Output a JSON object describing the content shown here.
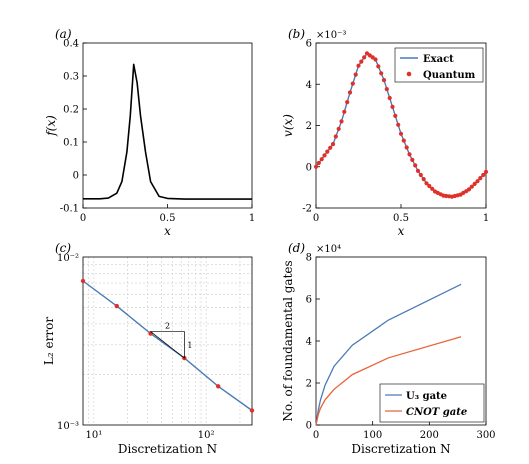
{
  "colors": {
    "exact": "#4a7bb7",
    "quantum": "#e0302a",
    "u3": "#4a7bb7",
    "cnot": "#e8643a",
    "grid": "#cccccc"
  },
  "chart_data": [
    {
      "id": "a",
      "type": "line",
      "panel_label": "(a)",
      "xlabel": "x",
      "ylabel": "f(x)",
      "xlim": [
        0,
        1
      ],
      "ylim": [
        -0.1,
        0.4
      ],
      "xticks": [
        "0",
        "0.5",
        "1"
      ],
      "yticks": [
        "-0.1",
        "0",
        "0.1",
        "0.2",
        "0.3",
        "0.4"
      ],
      "series": [
        {
          "x": [
            0,
            0.1,
            0.15,
            0.2,
            0.23,
            0.26,
            0.28,
            0.3,
            0.32,
            0.34,
            0.37,
            0.4,
            0.45,
            0.5,
            0.6,
            0.8,
            1.0
          ],
          "y": [
            -0.072,
            -0.072,
            -0.07,
            -0.055,
            -0.02,
            0.07,
            0.18,
            0.335,
            0.28,
            0.18,
            0.07,
            -0.02,
            -0.065,
            -0.071,
            -0.073,
            -0.073,
            -0.073
          ]
        }
      ]
    },
    {
      "id": "b",
      "type": "line",
      "panel_label": "(b)",
      "xlabel": "x",
      "ylabel": "v(x)",
      "y_multiplier": "×10⁻³",
      "xlim": [
        0,
        1
      ],
      "ylim": [
        -2,
        6
      ],
      "xticks": [
        "0",
        "0.5",
        "1"
      ],
      "yticks": [
        "-2",
        "0",
        "2",
        "4",
        "6"
      ],
      "legend": {
        "position": "top-right",
        "entries": [
          "Exact",
          "Quantum"
        ]
      },
      "series": [
        {
          "name": "Exact",
          "x": [
            0,
            0.05,
            0.1,
            0.15,
            0.2,
            0.25,
            0.3,
            0.35,
            0.4,
            0.45,
            0.5,
            0.55,
            0.6,
            0.65,
            0.7,
            0.75,
            0.8,
            0.85,
            0.9,
            0.95,
            1.0
          ],
          "y": [
            0,
            0.55,
            1.1,
            2.2,
            3.6,
            4.9,
            5.5,
            5.2,
            4.2,
            2.9,
            1.6,
            0.6,
            -0.2,
            -0.8,
            -1.2,
            -1.4,
            -1.45,
            -1.35,
            -1.1,
            -0.7,
            -0.25
          ]
        },
        {
          "name": "Quantum",
          "x": [
            0,
            0.05,
            0.1,
            0.15,
            0.2,
            0.25,
            0.3,
            0.35,
            0.4,
            0.45,
            0.5,
            0.55,
            0.6,
            0.65,
            0.7,
            0.75,
            0.8,
            0.85,
            0.9,
            0.95,
            1.0
          ],
          "y": [
            0,
            0.55,
            1.1,
            2.2,
            3.6,
            4.9,
            5.5,
            5.2,
            4.2,
            2.9,
            1.6,
            0.6,
            -0.2,
            -0.8,
            -1.2,
            -1.4,
            -1.45,
            -1.35,
            -1.1,
            -0.7,
            -0.25
          ]
        }
      ]
    },
    {
      "id": "c",
      "type": "line",
      "panel_label": "(c)",
      "xlabel": "Discretization N",
      "ylabel": "L₂ error",
      "xscale": "log",
      "yscale": "log",
      "grid": true,
      "xlim": [
        8,
        256
      ],
      "ylim": [
        0.001,
        0.01
      ],
      "xticks": [
        "10¹",
        "10²"
      ],
      "yticks": [
        "10⁻³",
        "10⁻²"
      ],
      "annotation": {
        "run": "2",
        "rise": "1"
      },
      "series": [
        {
          "x": [
            8,
            16,
            32,
            64,
            128,
            256
          ],
          "y": [
            0.0072,
            0.0051,
            0.0035,
            0.0025,
            0.0017,
            0.00122
          ]
        }
      ]
    },
    {
      "id": "d",
      "type": "line",
      "panel_label": "(d)",
      "xlabel": "Discretization N",
      "ylabel": "No. of foundamental gates",
      "y_multiplier": "×10⁴",
      "xlim": [
        0,
        300
      ],
      "ylim": [
        0,
        8
      ],
      "xticks": [
        "0",
        "100",
        "200",
        "300"
      ],
      "yticks": [
        "0",
        "2",
        "4",
        "6",
        "8"
      ],
      "legend": {
        "position": "bottom-right",
        "entries": [
          "U₃ gate",
          "CNOT gate"
        ]
      },
      "series": [
        {
          "name": "U₃ gate",
          "x": [
            0,
            4,
            8,
            16,
            32,
            64,
            128,
            256
          ],
          "y": [
            0,
            0.7,
            1.2,
            1.9,
            2.8,
            3.8,
            5.0,
            6.7
          ]
        },
        {
          "name": "CNOT gate",
          "x": [
            0,
            4,
            8,
            16,
            32,
            64,
            128,
            256
          ],
          "y": [
            0,
            0.5,
            0.8,
            1.2,
            1.7,
            2.4,
            3.2,
            4.2
          ]
        }
      ]
    }
  ]
}
